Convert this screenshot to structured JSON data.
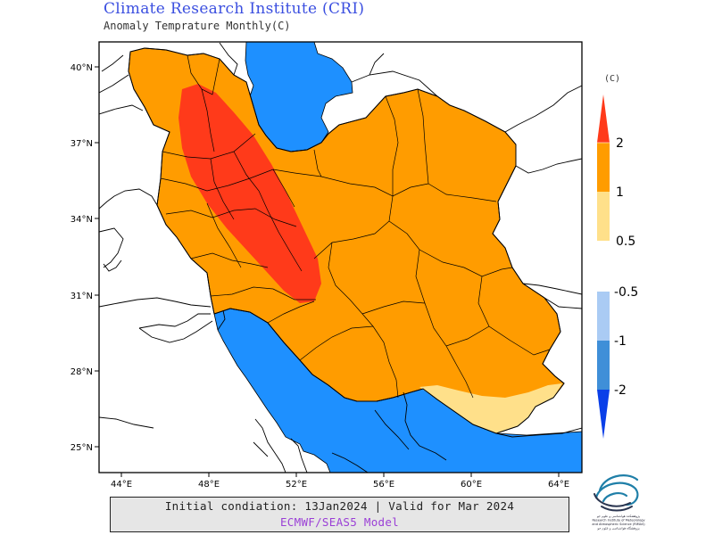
{
  "header": {
    "title": "Climate Research Institute (CRI)",
    "subtitle": "Anomaly Temprature Monthly(C)"
  },
  "map": {
    "region": "Iran",
    "lat_ticks": [
      "40°N",
      "37°N",
      "34°N",
      "31°N",
      "28°N",
      "25°N"
    ],
    "lon_ticks": [
      "44°E",
      "48°E",
      "52°E",
      "56°E",
      "60°E",
      "64°E"
    ],
    "colors": {
      "sea": "#1e90ff",
      "land_outside": "#ffffff",
      "anomaly_2": "#ff3a1a",
      "anomaly_1": "#ff9c00",
      "anomaly_0_5": "#ffe08a",
      "anomaly_neg_0_5": "#aacbf4",
      "anomaly_neg_1": "#3f8fd8",
      "anomaly_neg_2": "#0a3fe8"
    }
  },
  "colorbar": {
    "unit": "(C)",
    "warm_labels": [
      "2",
      "1",
      "0.5"
    ],
    "cold_labels": [
      "-0.5",
      "-1",
      "-2"
    ]
  },
  "footer": {
    "init_text": "Initial condiation: 13Jan2024 | Valid for Mar 2024",
    "model_text": "ECMWF/SEAS5 Model"
  },
  "logo": {
    "caption_lines": [
      "پژوهشکده هواشناسی و علوم جو",
      "Research Institute of Meteorology",
      "and Atmospheric Science (RIMAS)",
      "پژوهشگاه هواشناسی و علوم جو"
    ]
  }
}
